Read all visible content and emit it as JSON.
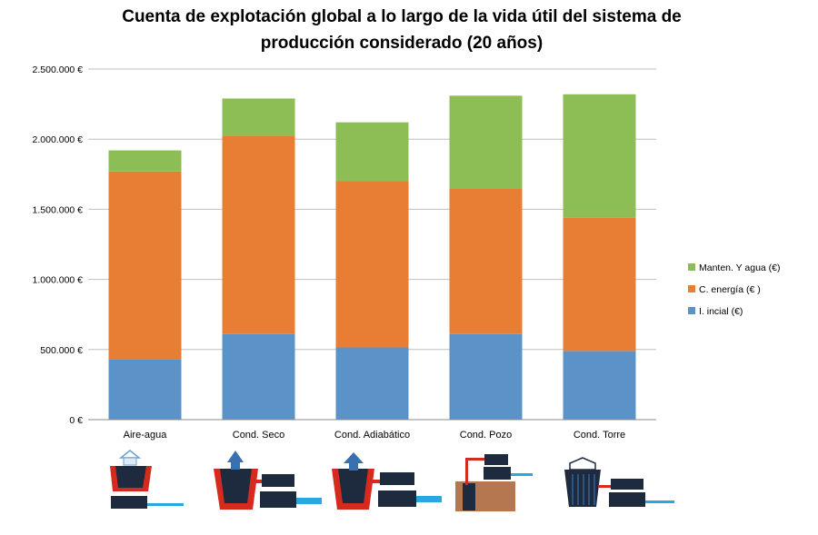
{
  "chart_data": {
    "type": "bar",
    "stacked": true,
    "title": [
      "Cuenta de explotación global  a lo largo de la vida útil del sistema de",
      "producción considerado (20 años)"
    ],
    "xlabel": "",
    "ylabel": "",
    "ylim": [
      0,
      2500000
    ],
    "yticks": [
      "0 €",
      "500.000 €",
      "1.000.000 €",
      "1.500.000 €",
      "2.000.000 €",
      "2.500.000 €"
    ],
    "ytick_values": [
      0,
      500000,
      1000000,
      1500000,
      2000000,
      2500000
    ],
    "grid": true,
    "legend_position": "right",
    "categories": [
      "Aire-agua",
      "Cond. Seco",
      "Cond. Adiabático",
      "Cond. Pozo",
      "Cond. Torre"
    ],
    "series": [
      {
        "name": "I. incial (€)",
        "color": "#5B93C9",
        "values": [
          430000,
          610000,
          515000,
          610000,
          490000
        ]
      },
      {
        "name": "C. energía (€ )",
        "color": "#E77E34",
        "values": [
          1340000,
          1415000,
          1185000,
          1035000,
          950000
        ]
      },
      {
        "name": "Manten. Y  agua (€)",
        "color": "#8DBE55",
        "values": [
          150000,
          265000,
          420000,
          665000,
          880000
        ]
      }
    ],
    "legend_order": [
      "Manten. Y  agua (€)",
      "C. energía (€ )",
      "I. incial (€)"
    ],
    "category_icons": [
      "air-water-unit-icon",
      "dry-cooler-icon",
      "adiabatic-cooler-icon",
      "well-condenser-icon",
      "cooling-tower-icon"
    ]
  },
  "colors": {
    "grid": "#BFBFBF",
    "axis": "#8C8C8C",
    "icon_dark": "#1E2B3F",
    "icon_red": "#D52B1E",
    "icon_blue": "#29A8E0",
    "icon_arrow": "#3A6FB0",
    "icon_ground": "#B5774F"
  }
}
